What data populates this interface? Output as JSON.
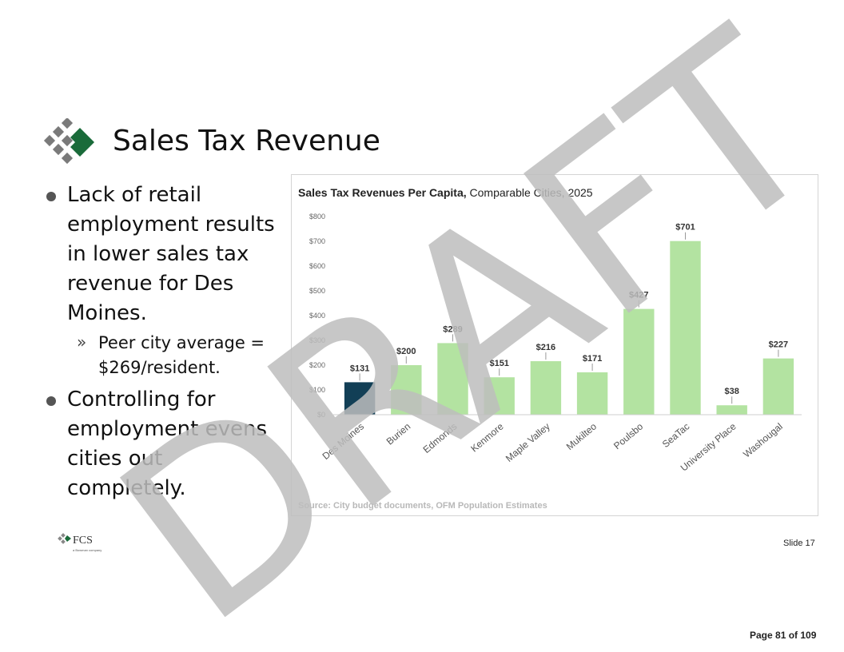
{
  "slide": {
    "title": "Sales Tax Revenue",
    "bullets": [
      "Lack of retail employment results in lower sales tax revenue for Des Moines.",
      "Controlling for employment evens cities out completely."
    ],
    "sub_bullet_glyph": "»",
    "sub_bullet": "Peer city average = $269/resident.",
    "slide_number": "Slide 17",
    "page_number": "Page 81 of 109",
    "watermark": "DRAFT",
    "footer_logo_text": "FCS",
    "footer_logo_tagline": "a Bowman company",
    "colors": {
      "highlight_bar": "#123f56",
      "bar": "#b3e3a1",
      "logo_green": "#1a6b3a",
      "logo_gray": "#777777",
      "watermark": "#bdbdbd"
    }
  },
  "chart_data": {
    "type": "bar",
    "title_bold": "Sales Tax Revenues  Per Capita,",
    "title_regular": " Comparable Cities, 2025",
    "categories": [
      "Des Moines",
      "Burien",
      "Edmonds",
      "Kenmore",
      "Maple Valley",
      "Mukilteo",
      "Poulsbo",
      "SeaTac",
      "University Place",
      "Washougal"
    ],
    "values": [
      131,
      200,
      289,
      151,
      216,
      171,
      427,
      701,
      38,
      227
    ],
    "data_labels": [
      "$131",
      "$200",
      "$289",
      "$151",
      "$216",
      "$171",
      "$427",
      "$701",
      "$38",
      "$227"
    ],
    "highlight_index": 0,
    "ylim": [
      0,
      800
    ],
    "yticks": [
      0,
      100,
      200,
      300,
      400,
      500,
      600,
      700,
      800
    ],
    "ytick_labels": [
      "$0",
      "$100",
      "$200",
      "$300",
      "$400",
      "$500",
      "$600",
      "$700",
      "$800"
    ],
    "grid": false,
    "source": "Source: City budget documents, OFM Population Estimates"
  }
}
